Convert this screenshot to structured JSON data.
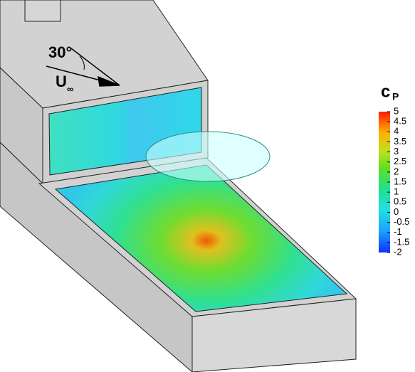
{
  "annotations": {
    "angle": "30°",
    "velocity": "U",
    "velocity_sub": "∞"
  },
  "colorbar": {
    "title": "c",
    "title_sub": "P",
    "lim": [
      -2,
      5
    ],
    "ticks": [
      -2,
      -1.5,
      -1,
      -0.5,
      0,
      0.5,
      1,
      1.5,
      2,
      2.5,
      3,
      3.5,
      4,
      4.5,
      5
    ]
  }
}
